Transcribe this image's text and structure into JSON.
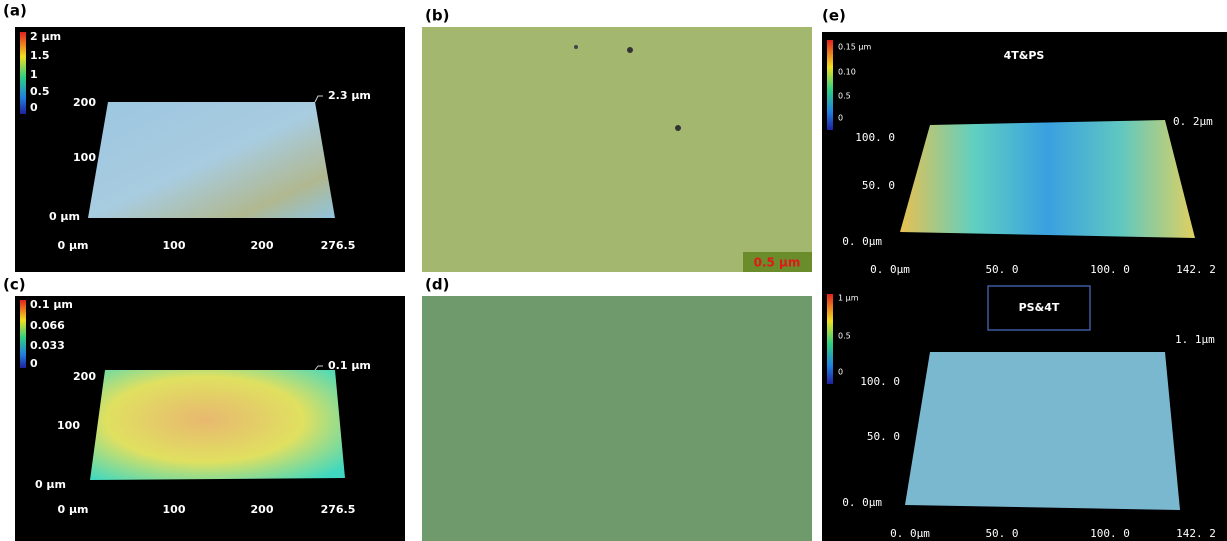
{
  "panels": [
    {
      "label": "(a)",
      "colorbar": [
        "2 µm",
        "1.5",
        "1",
        "0.5",
        "0"
      ],
      "z_max": "2.3 µm",
      "y_ticks": [
        "200",
        "100",
        "0 µm"
      ],
      "x_ticks": [
        "0 µm",
        "100",
        "200",
        "276.5"
      ]
    },
    {
      "label": "(b)",
      "scale_bar": "0.5 µm"
    },
    {
      "label": "(c)",
      "colorbar": [
        "0.1 µm",
        "0.066",
        "0.033",
        "0"
      ],
      "z_max": "0.1 µm",
      "y_ticks": [
        "200",
        "100",
        "0 µm"
      ],
      "x_ticks": [
        "0 µm",
        "100",
        "200",
        "276.5"
      ]
    },
    {
      "label": "(d)"
    },
    {
      "label": "(e)",
      "top": {
        "title": "4T&PS",
        "colorbar": [
          "0.15 µm",
          "0.10",
          "0.5",
          "0"
        ],
        "z_max": "0. 2µm",
        "y_ticks": [
          "100. 0",
          "50. 0",
          "0. 0µm"
        ],
        "x_ticks": [
          "0. 0µm",
          "50. 0",
          "100. 0",
          "142. 2"
        ]
      },
      "bottom": {
        "title": "PS&4T",
        "colorbar": [
          "1 µm",
          "0.5",
          "0"
        ],
        "z_max": "1. 1µm",
        "y_ticks": [
          "100. 0",
          "50. 0",
          "0. 0µm"
        ],
        "x_ticks": [
          "0. 0µm",
          "50. 0",
          "100. 0",
          "142. 2"
        ]
      }
    }
  ]
}
